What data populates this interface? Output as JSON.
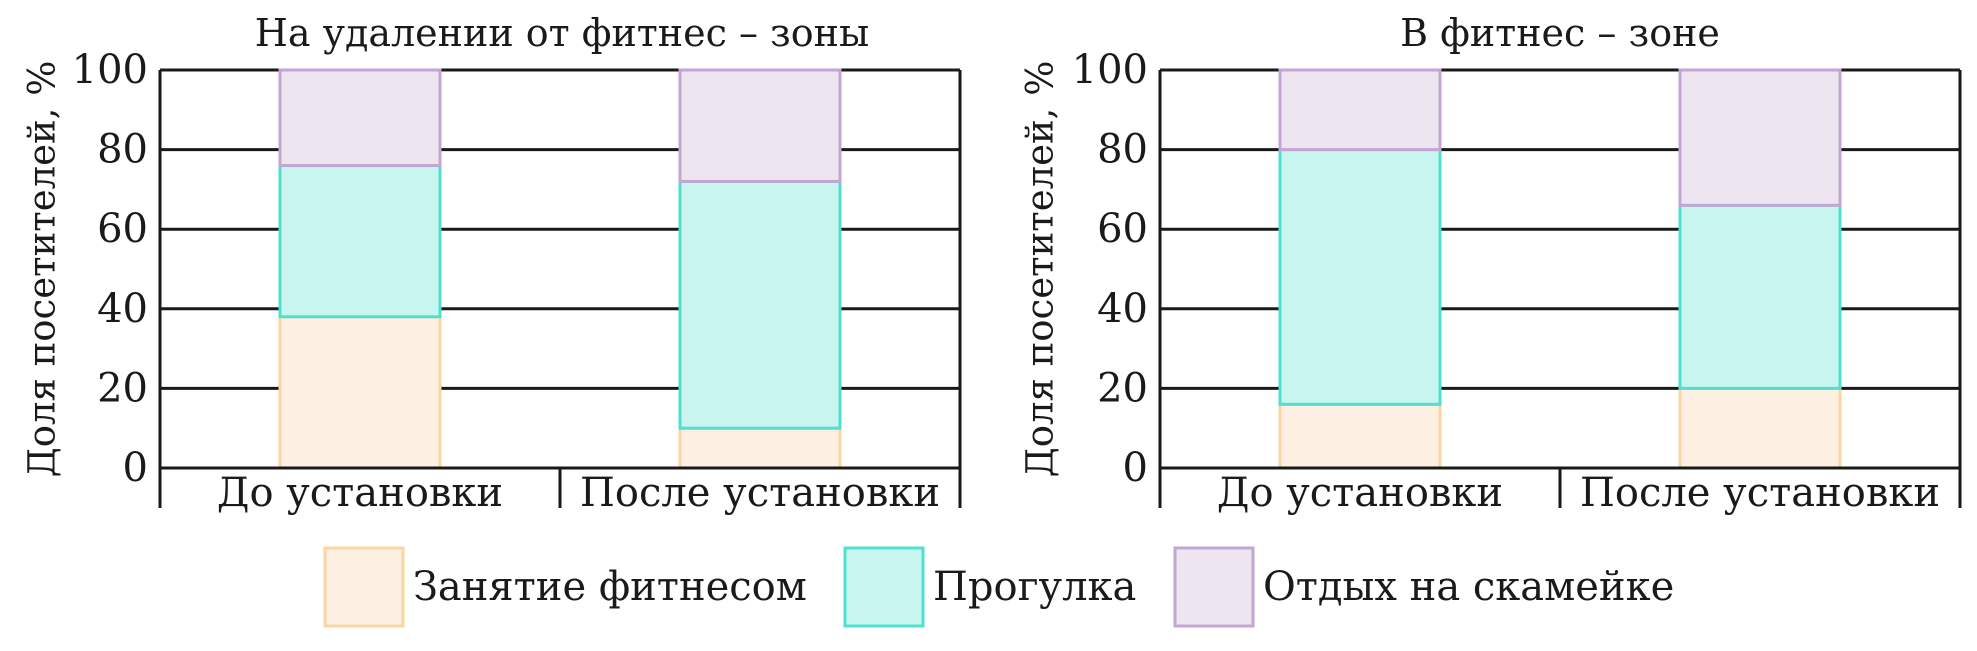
{
  "chart_data": [
    {
      "type": "bar",
      "stacked": true,
      "title": "На удалении от фитнес – зоны",
      "ylabel": "Доля посетителей, %",
      "xlabel": "",
      "ylim": [
        0,
        100
      ],
      "yticks": [
        0,
        20,
        40,
        60,
        80,
        100
      ],
      "grid": "horizontal",
      "categories": [
        "До установки",
        "После установки"
      ],
      "series": [
        {
          "name": "Занятие фитнесом",
          "values": [
            38,
            10
          ]
        },
        {
          "name": "Прогулка",
          "values": [
            38,
            62
          ]
        },
        {
          "name": "Отдых на скамейке",
          "values": [
            24,
            28
          ]
        }
      ]
    },
    {
      "type": "bar",
      "stacked": true,
      "title": "В фитнес – зоне",
      "ylabel": "Доля посетителей, %",
      "xlabel": "",
      "ylim": [
        0,
        100
      ],
      "yticks": [
        0,
        20,
        40,
        60,
        80,
        100
      ],
      "grid": "horizontal",
      "categories": [
        "До установки",
        "После установки"
      ],
      "series": [
        {
          "name": "Занятие фитнесом",
          "values": [
            16,
            20
          ]
        },
        {
          "name": "Прогулка",
          "values": [
            64,
            46
          ]
        },
        {
          "name": "Отдых на скамейке",
          "values": [
            20,
            34
          ]
        }
      ]
    }
  ],
  "legend": {
    "placement": "bottom",
    "items": [
      {
        "label": "Занятие фитнесом",
        "fill": "#fdf0e3",
        "stroke": "#f9d6a2"
      },
      {
        "label": "Прогулка",
        "fill": "#c8f5ef",
        "stroke": "#4fe0cf"
      },
      {
        "label": "Отдых на скамейке",
        "fill": "#ede5ef",
        "stroke": "#c3a6d3"
      }
    ]
  },
  "colors": {
    "series": [
      {
        "fill": "#fdf0e3",
        "stroke": "#f9d6a2"
      },
      {
        "fill": "#c8f5ef",
        "stroke": "#4fe0cf"
      },
      {
        "fill": "#ede5ef",
        "stroke": "#c3a6d3"
      }
    ],
    "axis": "#1a1a1a"
  }
}
